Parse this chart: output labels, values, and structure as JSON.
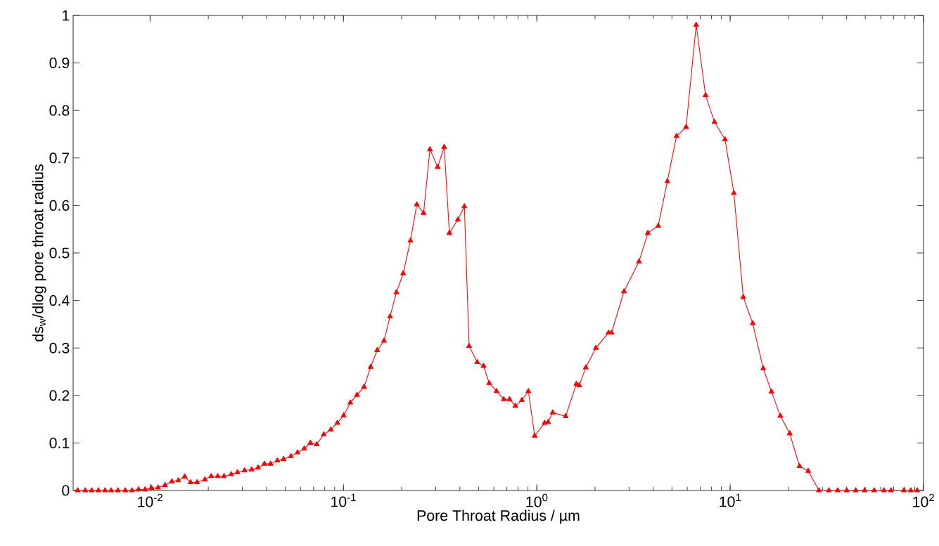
{
  "chart_data": {
    "type": "line",
    "xlabel": "Pore Throat Radius / µm",
    "ylabel": "ds$_{w}$/dlog pore throat radius",
    "log": "x",
    "marker": "triangle",
    "line_style": "solid",
    "color": "#ff0000",
    "xlim": [
      0.004,
      100
    ],
    "ylim": [
      0,
      1
    ],
    "xticks": [
      {
        "value": 0.01,
        "label": "10$^{-2}$"
      },
      {
        "value": 0.1,
        "label": "10$^{-1}$"
      },
      {
        "value": 1,
        "label": "10$^{0}$"
      },
      {
        "value": 10,
        "label": "10$^{1}$"
      },
      {
        "value": 100,
        "label": "10$^{2}$"
      }
    ],
    "yticks": [
      0,
      0.1,
      0.2,
      0.3,
      0.4,
      0.5,
      0.6,
      0.7,
      0.8,
      0.9,
      1
    ],
    "x": [
      0.00422,
      0.00462,
      0.00499,
      0.0054,
      0.00585,
      0.00629,
      0.00682,
      0.00744,
      0.00806,
      0.00872,
      0.00943,
      0.01017,
      0.011,
      0.01195,
      0.01296,
      0.014,
      0.0151,
      0.0162,
      0.0175,
      0.0192,
      0.0207,
      0.0224,
      0.0241,
      0.0263,
      0.0283,
      0.0308,
      0.0335,
      0.0362,
      0.039,
      0.042,
      0.0455,
      0.049,
      0.0535,
      0.0579,
      0.0627,
      0.0675,
      0.0727,
      0.0791,
      0.086,
      0.093,
      0.1003,
      0.1085,
      0.1175,
      0.1278,
      0.1383,
      0.1494,
      0.1621,
      0.1742,
      0.1879,
      0.2037,
      0.2221,
      0.2395,
      0.2597,
      0.2801,
      0.3071,
      0.332,
      0.3532,
      0.3905,
      0.4222,
      0.4465,
      0.492,
      0.5305,
      0.5673,
      0.6189,
      0.6747,
      0.7234,
      0.7746,
      0.8367,
      0.9046,
      0.9752,
      1.0965,
      1.1434,
      1.2092,
      1.4096,
      1.602,
      1.657,
      1.793,
      2.021,
      2.349,
      2.435,
      2.824,
      3.376,
      3.754,
      4.246,
      4.735,
      5.279,
      5.916,
      6.674,
      7.46,
      8.296,
      9.408,
      10.45,
      11.69,
      13.08,
      14.82,
      16.35,
      18.17,
      20.32,
      22.85,
      25.33,
      28.8,
      32.4,
      36.0,
      40.1,
      44.6,
      49.6,
      55.5,
      62.4,
      67.9,
      79.1,
      86.0,
      92.7
    ],
    "values": [
      0,
      0,
      0,
      0,
      0,
      0,
      0,
      0,
      0,
      0.002,
      0.002,
      0.005,
      0.006,
      0.011,
      0.019,
      0.021,
      0.029,
      0.017,
      0.017,
      0.023,
      0.03,
      0.03,
      0.03,
      0.034,
      0.038,
      0.042,
      0.044,
      0.048,
      0.056,
      0.056,
      0.063,
      0.066,
      0.072,
      0.08,
      0.088,
      0.1,
      0.097,
      0.118,
      0.128,
      0.142,
      0.158,
      0.185,
      0.201,
      0.218,
      0.26,
      0.295,
      0.315,
      0.366,
      0.417,
      0.457,
      0.526,
      0.602,
      0.584,
      0.718,
      0.681,
      0.723,
      0.542,
      0.57,
      0.598,
      0.304,
      0.27,
      0.262,
      0.226,
      0.209,
      0.192,
      0.192,
      0.178,
      0.19,
      0.209,
      0.115,
      0.142,
      0.144,
      0.164,
      0.156,
      0.224,
      0.221,
      0.259,
      0.3,
      0.332,
      0.332,
      0.419,
      0.482,
      0.542,
      0.557,
      0.651,
      0.746,
      0.765,
      0.98,
      0.832,
      0.776,
      0.739,
      0.626,
      0.407,
      0.352,
      0.257,
      0.208,
      0.157,
      0.12,
      0.051,
      0.041,
      0,
      0,
      0,
      0,
      0,
      0,
      0,
      0,
      0,
      0,
      0,
      0
    ]
  }
}
